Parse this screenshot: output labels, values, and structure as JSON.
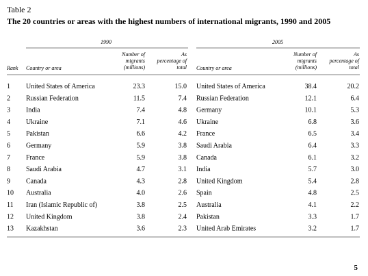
{
  "header": {
    "label": "Table 2",
    "title": "The 20 countries or areas with the highest numbers of international migrants, 1990 and 2005"
  },
  "table": {
    "groups": [
      "1990",
      "2005"
    ],
    "columns": [
      "Rank",
      "Country or area",
      "Number of migrants (millions)",
      "As percentage of total",
      "Country or area",
      "Number of migrants (millions)",
      "As percentage of total"
    ],
    "rows": [
      [
        "1",
        "United States of America",
        "23.3",
        "15.0",
        "United States of America",
        "38.4",
        "20.2"
      ],
      [
        "2",
        "Russian Federation",
        "11.5",
        "7.4",
        "Russian Federation",
        "12.1",
        "6.4"
      ],
      [
        "3",
        "India",
        "7.4",
        "4.8",
        "Germany",
        "10.1",
        "5.3"
      ],
      [
        "4",
        "Ukraine",
        "7.1",
        "4.6",
        "Ukraine",
        "6.8",
        "3.6"
      ],
      [
        "5",
        "Pakistan",
        "6.6",
        "4.2",
        "France",
        "6.5",
        "3.4"
      ],
      [
        "6",
        "Germany",
        "5.9",
        "3.8",
        "Saudi Arabia",
        "6.4",
        "3.3"
      ],
      [
        "7",
        "France",
        "5.9",
        "3.8",
        "Canada",
        "6.1",
        "3.2"
      ],
      [
        "8",
        "Saudi Arabia",
        "4.7",
        "3.1",
        "India",
        "5.7",
        "3.0"
      ],
      [
        "9",
        "Canada",
        "4.3",
        "2.8",
        "United Kingdom",
        "5.4",
        "2.8"
      ],
      [
        "10",
        "Australia",
        "4.0",
        "2.6",
        "Spain",
        "4.8",
        "2.5"
      ],
      [
        "11",
        "Iran (Islamic Republic of)",
        "3.8",
        "2.5",
        "Australia",
        "4.1",
        "2.2"
      ],
      [
        "12",
        "United Kingdom",
        "3.8",
        "2.4",
        "Pakistan",
        "3.3",
        "1.7"
      ],
      [
        "13",
        "Kazakhstan",
        "3.6",
        "2.3",
        "United Arab Emirates",
        "3.2",
        "1.7"
      ]
    ]
  },
  "footer": {
    "page_number": "5"
  }
}
